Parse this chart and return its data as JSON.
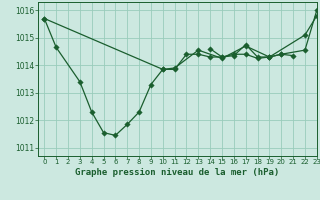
{
  "title": "Graphe pression niveau de la mer (hPa)",
  "background_color": "#cce8e0",
  "grid_color": "#99ccbb",
  "line_color": "#1a5e2e",
  "xlim": [
    -0.5,
    23
  ],
  "ylim": [
    1010.7,
    1016.3
  ],
  "yticks": [
    1011,
    1012,
    1013,
    1014,
    1015,
    1016
  ],
  "xticks": [
    0,
    1,
    2,
    3,
    4,
    5,
    6,
    7,
    8,
    9,
    10,
    11,
    12,
    13,
    14,
    15,
    16,
    17,
    18,
    19,
    20,
    21,
    22,
    23
  ],
  "series": [
    {
      "x": [
        0,
        1,
        3,
        4,
        5,
        6,
        7,
        8,
        9,
        10,
        11,
        12,
        13,
        14,
        15,
        16,
        17,
        18,
        19,
        20,
        22,
        23
      ],
      "y": [
        1015.7,
        1014.65,
        1013.4,
        1012.3,
        1011.55,
        1011.45,
        1011.85,
        1012.3,
        1013.3,
        1013.85,
        1013.85,
        1014.4,
        1014.4,
        1014.3,
        1014.3,
        1014.4,
        1014.4,
        1014.25,
        1014.3,
        1014.4,
        1014.55,
        1016.0
      ]
    },
    {
      "x": [
        0,
        10,
        11,
        13,
        15,
        17,
        19,
        22,
        23
      ],
      "y": [
        1015.7,
        1013.85,
        1013.9,
        1014.55,
        1014.25,
        1014.7,
        1014.3,
        1015.1,
        1015.8
      ]
    },
    {
      "x": [
        14,
        15,
        16,
        17,
        18,
        19,
        20,
        21
      ],
      "y": [
        1014.6,
        1014.3,
        1014.35,
        1014.75,
        1014.3,
        1014.3,
        1014.4,
        1014.35
      ]
    }
  ]
}
